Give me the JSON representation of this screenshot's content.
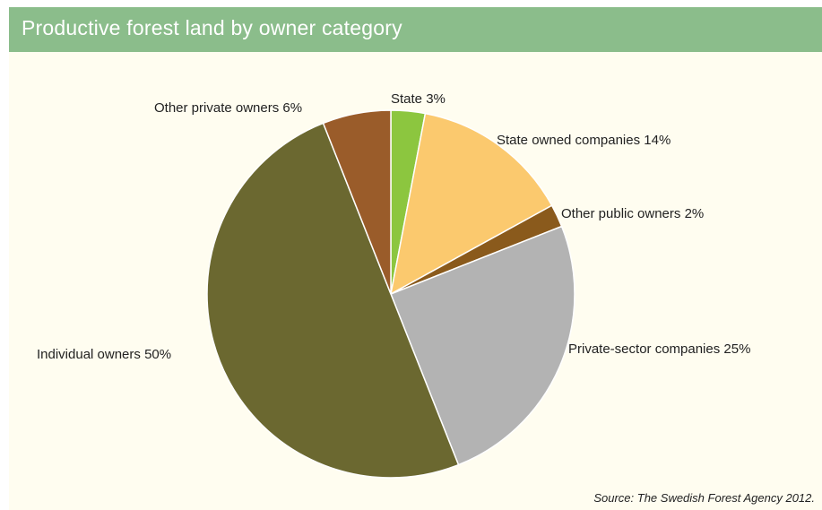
{
  "header": {
    "title": "Productive forest land by owner category"
  },
  "source": "Source: The Swedish Forest Agency 2012.",
  "chart_data": {
    "type": "pie",
    "title": "Productive forest land by owner category",
    "slices": [
      {
        "label": "State 3%",
        "value": 3,
        "color": "#8cc63f"
      },
      {
        "label": "State owned companies 14%",
        "value": 14,
        "color": "#fbc96e"
      },
      {
        "label": "Other public owners 2%",
        "value": 2,
        "color": "#8a5a1c"
      },
      {
        "label": "Private-sector companies 25%",
        "value": 25,
        "color": "#b3b3b3"
      },
      {
        "label": "Individual owners 50%",
        "value": 50,
        "color": "#6b6830"
      },
      {
        "label": "Other private owners 6%",
        "value": 6,
        "color": "#9a5c2a"
      }
    ]
  }
}
